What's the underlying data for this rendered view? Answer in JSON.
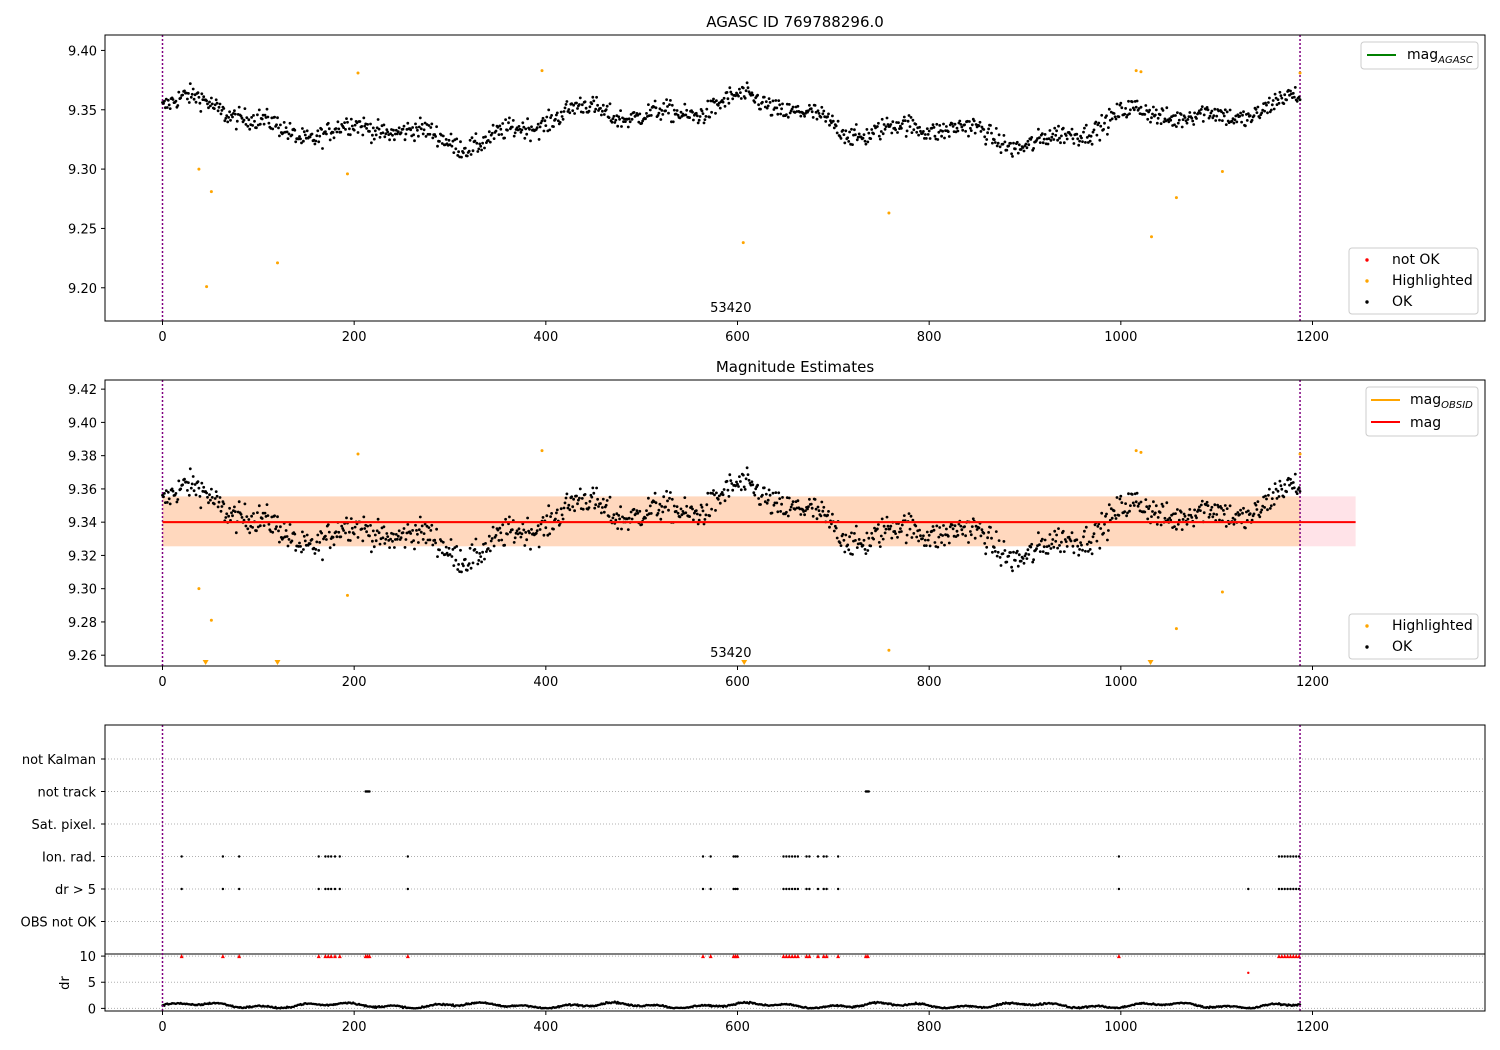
{
  "chart_data": [
    {
      "type": "scatter",
      "title": "AGASC ID 769788296.0",
      "xlim": [
        -60,
        1380
      ],
      "ylim": [
        9.172,
        9.413
      ],
      "xticks": [
        0,
        200,
        400,
        600,
        800,
        1000,
        1200
      ],
      "xtick_labels": [
        "0",
        "200",
        "400",
        "600",
        "800",
        "1000",
        "1200"
      ],
      "yticks": [
        9.2,
        9.25,
        9.3,
        9.35,
        9.4
      ],
      "ytick_labels": [
        "9.20",
        "9.25",
        "9.30",
        "9.35",
        "9.40"
      ],
      "vlines": [
        0,
        1187
      ],
      "vline_color": "#800080",
      "annotation": {
        "text": "53420",
        "x": 593
      },
      "series_ok": {
        "name": "OK",
        "color": "#000000",
        "n": 1187,
        "x_range": [
          0,
          1187
        ],
        "baseline": 9.34,
        "noise": 0.012
      },
      "series_highlighted": {
        "name": "Highlighted",
        "color": "#FFA500",
        "x": [
          38,
          46,
          51,
          120,
          193,
          204,
          396,
          606,
          758,
          1016,
          1021,
          1032,
          1058,
          1106,
          1187
        ],
        "y": [
          9.3,
          9.201,
          9.281,
          9.221,
          9.296,
          9.381,
          9.383,
          9.238,
          9.263,
          9.383,
          9.382,
          9.243,
          9.276,
          9.298,
          9.381
        ]
      },
      "series_not_ok": {
        "name": "not OK",
        "color": "#FF0000"
      },
      "legend_lines": [
        {
          "label": "mag",
          "sub": "AGASC",
          "color": "#008000"
        }
      ],
      "legend_lines_placement": "top-right",
      "legend_points": [
        {
          "label": "not OK",
          "color": "#FF0000"
        },
        {
          "label": "Highlighted",
          "color": "#FFA500"
        },
        {
          "label": "OK",
          "color": "#000000"
        }
      ],
      "legend_points_placement": "lower-right"
    },
    {
      "type": "scatter",
      "title": "Magnitude Estimates",
      "xlim": [
        -60,
        1380
      ],
      "ylim": [
        9.2535,
        9.4255
      ],
      "xticks": [
        0,
        200,
        400,
        600,
        800,
        1000,
        1200
      ],
      "xtick_labels": [
        "0",
        "200",
        "400",
        "600",
        "800",
        "1000",
        "1200"
      ],
      "yticks": [
        9.26,
        9.28,
        9.3,
        9.32,
        9.34,
        9.36,
        9.38,
        9.4,
        9.42
      ],
      "ytick_labels": [
        "9.26",
        "9.28",
        "9.30",
        "9.32",
        "9.34",
        "9.36",
        "9.38",
        "9.40",
        "9.42"
      ],
      "vlines": [
        0,
        1187
      ],
      "annotation": {
        "text": "53420",
        "x": 593
      },
      "mag_line": {
        "value": 9.34,
        "x_range": [
          0,
          1245
        ],
        "color": "#FF0000"
      },
      "mag_band": {
        "low": 9.3255,
        "high": 9.3555,
        "color": "#FFC0CB"
      },
      "obsid_line": {
        "value": 9.34,
        "x_range": [
          0,
          1187
        ],
        "color": "#FFA500"
      },
      "obsid_band": {
        "low": 9.3255,
        "high": 9.3555,
        "color": "#FFA500"
      },
      "offscale_markers_x": [
        45,
        120,
        607,
        1031
      ],
      "legend_lines": [
        {
          "label": "mag",
          "sub": "OBSID",
          "color": "#FFA500"
        },
        {
          "label": "mag",
          "sub": "",
          "color": "#FF0000"
        }
      ],
      "legend_lines_placement": "top-right",
      "legend_points": [
        {
          "label": "Highlighted",
          "color": "#FFA500"
        },
        {
          "label": "OK",
          "color": "#000000"
        }
      ],
      "legend_points_placement": "lower-right"
    },
    {
      "type": "scatter",
      "title": "",
      "xlim": [
        -60,
        1380
      ],
      "xticks": [
        0,
        200,
        400,
        600,
        800,
        1000,
        1200
      ],
      "xtick_labels": [
        "0",
        "200",
        "400",
        "600",
        "800",
        "1000",
        "1200"
      ],
      "flag_rows": [
        "not Kalman",
        "not track",
        "Sat. pixel.",
        "Ion. rad.",
        "dr > 5",
        "OBS not OK"
      ],
      "flags": {
        "not Kalman": [],
        "not track": [
          212,
          213,
          214,
          215,
          216,
          734,
          735,
          736,
          737
        ],
        "Sat. pixel.": [],
        "Ion. rad.": [
          20,
          63,
          80,
          163,
          170,
          173,
          176,
          180,
          185,
          256,
          564,
          572,
          596,
          598,
          600,
          648,
          651,
          654,
          657,
          660,
          663,
          672,
          675,
          684,
          690,
          693,
          705,
          998,
          1165,
          1168,
          1171,
          1174,
          1177,
          1180,
          1183,
          1186
        ],
        "dr > 5": [
          20,
          63,
          80,
          163,
          170,
          173,
          176,
          180,
          185,
          256,
          564,
          572,
          596,
          598,
          600,
          648,
          651,
          654,
          657,
          660,
          663,
          672,
          675,
          684,
          690,
          693,
          705,
          998,
          1133,
          1165,
          1168,
          1171,
          1174,
          1177,
          1180,
          1183,
          1186
        ],
        "OBS not OK": []
      },
      "dr_ylim": [
        -0.5,
        10.4
      ],
      "dr_yticks": [
        0,
        5,
        10
      ],
      "dr_ytick_labels": [
        "0",
        "5",
        "10"
      ],
      "dr_ylabel": "dr",
      "dr_clipped_x": [
        20,
        63,
        80,
        163,
        170,
        173,
        176,
        180,
        185,
        212,
        214,
        216,
        256,
        564,
        572,
        596,
        598,
        600,
        648,
        651,
        654,
        657,
        660,
        663,
        672,
        675,
        684,
        690,
        693,
        705,
        734,
        736,
        998,
        1165,
        1168,
        1171,
        1174,
        1177,
        1180,
        1183,
        1186
      ],
      "dr_outlier": {
        "x": 1133,
        "y": 6.8
      },
      "dr_typical_range": [
        0,
        1.5
      ]
    }
  ]
}
